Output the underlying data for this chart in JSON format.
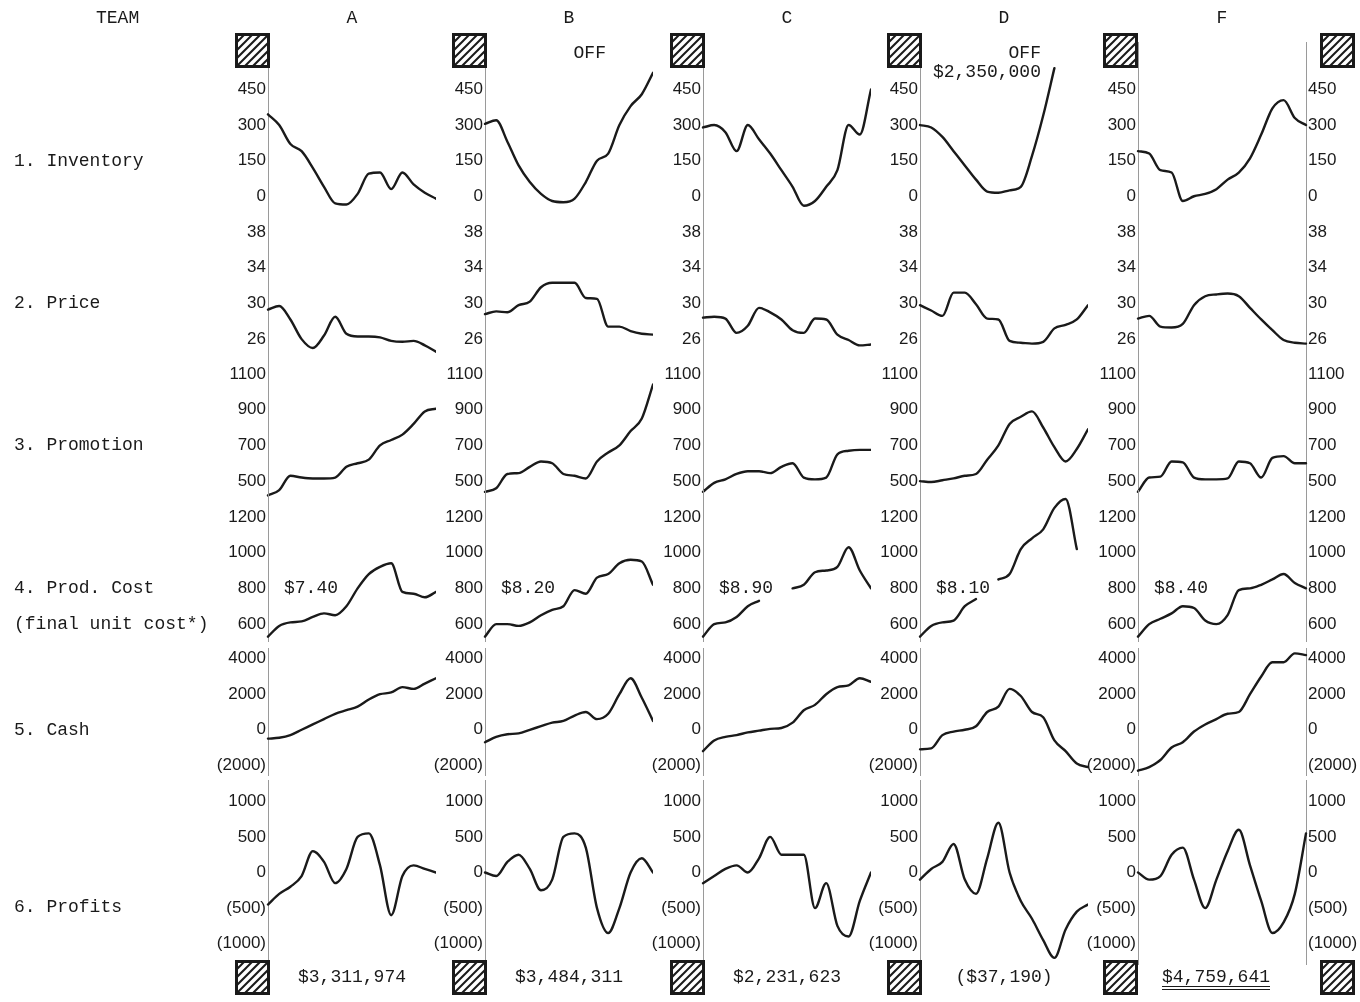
{
  "chart_data": [
    {
      "type": "other",
      "title": "TEAM"
    },
    {
      "type": "line",
      "title": "A",
      "ylabel": "1. Inventory",
      "categories": [
        null,
        null,
        null,
        null,
        null,
        null,
        null,
        null,
        null,
        null,
        null,
        null,
        null,
        null,
        null,
        null
      ],
      "values": [
        345,
        300,
        220,
        190,
        120,
        40,
        -30,
        -35,
        10,
        95,
        100,
        30,
        100,
        50,
        15,
        -10
      ],
      "color": "#1a1a1a",
      "ylim": [
        -100,
        650
      ],
      "yticks": [
        0,
        150,
        300,
        450
      ],
      "tick_labels": "y"
    },
    {
      "type": "line",
      "title": "B",
      "annotations": [
        "OFF"
      ],
      "categories": [
        null,
        null,
        null,
        null,
        null,
        null,
        null,
        null,
        null,
        null,
        null,
        null,
        null,
        null,
        null,
        null
      ],
      "values": [
        305,
        320,
        230,
        130,
        60,
        10,
        -20,
        -25,
        -10,
        60,
        150,
        180,
        300,
        380,
        430,
        520
      ],
      "color": "#1a1a1a",
      "ylim": [
        -100,
        650
      ],
      "yticks": [
        0,
        150,
        300,
        450
      ],
      "tick_labels": "y"
    },
    {
      "type": "line",
      "title": "C",
      "categories": [
        null,
        null,
        null,
        null,
        null,
        null,
        null,
        null,
        null,
        null,
        null,
        null,
        null,
        null,
        null,
        null
      ],
      "values": [
        290,
        300,
        270,
        190,
        300,
        240,
        180,
        110,
        40,
        -40,
        -20,
        40,
        110,
        300,
        260,
        450
      ],
      "color": "#1a1a1a",
      "ylim": [
        -100,
        650
      ],
      "yticks": [
        0,
        150,
        300,
        450
      ],
      "tick_labels": "y"
    },
    {
      "type": "line",
      "title": "D",
      "annotations": [
        "OFF",
        "$2,350,000"
      ],
      "categories": [
        null,
        null,
        null,
        null,
        null,
        null,
        null,
        null,
        null,
        null,
        null,
        null,
        null,
        null,
        null,
        null
      ],
      "values": [
        300,
        290,
        250,
        190,
        130,
        70,
        20,
        15,
        25,
        40,
        170,
        340,
        540,
        null,
        null,
        null
      ],
      "color": "#1a1a1a",
      "ylim": [
        -100,
        650
      ],
      "yticks": [
        0,
        150,
        300,
        450
      ],
      "tick_labels": "y"
    },
    {
      "type": "line",
      "title": "F",
      "categories": [
        null,
        null,
        null,
        null,
        null,
        null,
        null,
        null,
        null,
        null,
        null,
        null,
        null,
        null,
        null,
        null
      ],
      "values": [
        190,
        180,
        110,
        100,
        -20,
        0,
        10,
        30,
        70,
        100,
        160,
        260,
        370,
        405,
        330,
        300
      ],
      "color": "#1a1a1a",
      "ylim": [
        -100,
        650
      ],
      "yticks": [
        0,
        150,
        300,
        450
      ],
      "y2lim": [
        -100,
        650
      ],
      "y2ticks": [
        0,
        150,
        300,
        450
      ],
      "tick_labels": "y"
    },
    {
      "type": "line",
      "ylabel": "2. Price",
      "categories": [
        null,
        null,
        null,
        null,
        null,
        null,
        null,
        null,
        null,
        null,
        null,
        null,
        null,
        null,
        null,
        null
      ],
      "values": [
        29.3,
        29.7,
        28.2,
        26.0,
        25.0,
        26.4,
        28.5,
        26.6,
        26.3,
        26.3,
        26.2,
        25.8,
        25.7,
        25.8,
        25.3,
        24.6
      ],
      "color": "#1a1a1a",
      "ylim": [
        24,
        40
      ],
      "yticks": [
        26,
        30,
        34,
        38
      ],
      "tick_labels": "y"
    },
    {
      "type": "line",
      "categories": [
        null,
        null,
        null,
        null,
        null,
        null,
        null,
        null,
        null,
        null,
        null,
        null,
        null,
        null,
        null,
        null
      ],
      "values": [
        28.8,
        29.1,
        29.0,
        29.8,
        30.2,
        31.8,
        32.3,
        32.3,
        32.3,
        30.6,
        30.5,
        27.4,
        27.4,
        26.9,
        26.6,
        26.5
      ],
      "color": "#1a1a1a",
      "ylim": [
        24,
        40
      ],
      "yticks": [
        26,
        30,
        34,
        38
      ],
      "tick_labels": "y"
    },
    {
      "type": "line",
      "categories": [
        null,
        null,
        null,
        null,
        null,
        null,
        null,
        null,
        null,
        null,
        null,
        null,
        null,
        null,
        null,
        null
      ],
      "values": [
        28.4,
        28.5,
        28.3,
        26.7,
        27.5,
        29.5,
        29.0,
        28.2,
        27.0,
        26.7,
        28.3,
        28.2,
        26.5,
        25.9,
        25.3,
        25.4
      ],
      "color": "#1a1a1a",
      "ylim": [
        24,
        40
      ],
      "yticks": [
        26,
        30,
        34,
        38
      ],
      "tick_labels": "y"
    },
    {
      "type": "line",
      "categories": [
        null,
        null,
        null,
        null,
        null,
        null,
        null,
        null,
        null,
        null,
        null,
        null,
        null,
        null,
        null,
        null
      ],
      "values": [
        29.8,
        29.2,
        28.6,
        31.2,
        31.2,
        29.9,
        28.3,
        28.2,
        25.8,
        25.6,
        25.5,
        25.7,
        27.2,
        27.6,
        28.2,
        29.8
      ],
      "color": "#1a1a1a",
      "ylim": [
        24,
        40
      ],
      "yticks": [
        26,
        30,
        34,
        38
      ],
      "tick_labels": "y"
    },
    {
      "type": "line",
      "categories": [
        null,
        null,
        null,
        null,
        null,
        null,
        null,
        null,
        null,
        null,
        null,
        null,
        null,
        null,
        null,
        null
      ],
      "values": [
        28.3,
        28.6,
        27.4,
        27.3,
        27.7,
        29.8,
        30.8,
        31.0,
        31.1,
        30.8,
        29.5,
        28.2,
        27.0,
        25.9,
        25.6,
        25.5
      ],
      "color": "#1a1a1a",
      "ylim": [
        24,
        40
      ],
      "yticks": [
        26,
        30,
        34,
        38
      ],
      "y2lim": [
        24,
        40
      ],
      "y2ticks": [
        26,
        30,
        34,
        38
      ],
      "tick_labels": "y"
    },
    {
      "type": "line",
      "ylabel": "3. Promotion",
      "categories": [
        null,
        null,
        null,
        null,
        null,
        null,
        null,
        null,
        null,
        null,
        null,
        null,
        null,
        null,
        null,
        null
      ],
      "values": [
        420,
        450,
        530,
        520,
        515,
        515,
        520,
        580,
        600,
        620,
        700,
        730,
        760,
        820,
        890,
        905
      ],
      "color": "#1a1a1a",
      "ylim": [
        400,
        1200
      ],
      "yticks": [
        500,
        700,
        900,
        1100
      ],
      "tick_labels": "y"
    },
    {
      "type": "line",
      "categories": [
        null,
        null,
        null,
        null,
        null,
        null,
        null,
        null,
        null,
        null,
        null,
        null,
        null,
        null,
        null,
        null
      ],
      "values": [
        440,
        460,
        540,
        545,
        580,
        610,
        600,
        540,
        530,
        515,
        610,
        660,
        700,
        780,
        850,
        1040
      ],
      "color": "#1a1a1a",
      "ylim": [
        400,
        1200
      ],
      "yticks": [
        500,
        700,
        900,
        1100
      ],
      "tick_labels": "y"
    },
    {
      "type": "line",
      "categories": [
        null,
        null,
        null,
        null,
        null,
        null,
        null,
        null,
        null,
        null,
        null,
        null,
        null,
        null,
        null,
        null
      ],
      "values": [
        440,
        490,
        510,
        540,
        555,
        555,
        545,
        580,
        600,
        520,
        510,
        520,
        650,
        670,
        675,
        675
      ],
      "color": "#1a1a1a",
      "ylim": [
        400,
        1200
      ],
      "yticks": [
        500,
        700,
        900,
        1100
      ],
      "tick_labels": "y"
    },
    {
      "type": "line",
      "categories": [
        null,
        null,
        null,
        null,
        null,
        null,
        null,
        null,
        null,
        null,
        null,
        null,
        null,
        null,
        null,
        null
      ],
      "values": [
        500,
        495,
        505,
        515,
        530,
        540,
        620,
        700,
        820,
        860,
        890,
        800,
        690,
        610,
        680,
        790
      ],
      "color": "#1a1a1a",
      "ylim": [
        400,
        1200
      ],
      "yticks": [
        500,
        700,
        900,
        1100
      ],
      "tick_labels": "y"
    },
    {
      "type": "line",
      "categories": [
        null,
        null,
        null,
        null,
        null,
        null,
        null,
        null,
        null,
        null,
        null,
        null,
        null,
        null,
        null,
        null
      ],
      "values": [
        440,
        520,
        525,
        610,
        605,
        520,
        510,
        510,
        515,
        610,
        600,
        520,
        630,
        640,
        600,
        600
      ],
      "color": "#1a1a1a",
      "ylim": [
        400,
        1200
      ],
      "yticks": [
        500,
        700,
        900,
        1100
      ],
      "y2lim": [
        400,
        1200
      ],
      "y2ticks": [
        500,
        700,
        900,
        1100
      ],
      "tick_labels": "y"
    },
    {
      "type": "line",
      "ylabel": "4. Prod. Cost\n(final unit cost*)",
      "annotations": [
        "$7.40"
      ],
      "categories": [
        null,
        null,
        null,
        null,
        null,
        null,
        null,
        null,
        null,
        null,
        null,
        null,
        null,
        null,
        null,
        null
      ],
      "values": [
        530,
        590,
        610,
        615,
        640,
        660,
        650,
        700,
        800,
        880,
        920,
        940,
        780,
        770,
        750,
        780
      ],
      "color": "#1a1a1a",
      "ylim": [
        500,
        1350
      ],
      "yticks": [
        600,
        800,
        1000,
        1200
      ],
      "tick_labels": "y"
    },
    {
      "type": "line",
      "annotations": [
        "$8.20"
      ],
      "categories": [
        null,
        null,
        null,
        null,
        null,
        null,
        null,
        null,
        null,
        null,
        null,
        null,
        null,
        null,
        null,
        null
      ],
      "values": [
        530,
        600,
        600,
        590,
        610,
        650,
        680,
        700,
        790,
        770,
        860,
        880,
        940,
        960,
        950,
        820
      ],
      "color": "#1a1a1a",
      "ylim": [
        500,
        1350
      ],
      "yticks": [
        600,
        800,
        1000,
        1200
      ],
      "tick_labels": "y"
    },
    {
      "type": "line",
      "annotations": [
        "$8.90"
      ],
      "categories": [
        null,
        null,
        null,
        null,
        null,
        null,
        null,
        null,
        null,
        null,
        null,
        null,
        null,
        null,
        null,
        null
      ],
      "series": [
        {
          "color": "#1a1a1a",
          "values": [
            530,
            600,
            610,
            640,
            700,
            730,
            null,
            null,
            null,
            null,
            null,
            null,
            null,
            null,
            null,
            null
          ]
        },
        {
          "color": "#1a1a1a",
          "values": [
            null,
            null,
            null,
            null,
            null,
            null,
            null,
            null,
            800,
            820,
            890,
            900,
            920,
            1030,
            900,
            800
          ]
        }
      ],
      "ylim": [
        500,
        1350
      ],
      "yticks": [
        600,
        800,
        1000,
        1200
      ],
      "tick_labels": "y"
    },
    {
      "type": "line",
      "annotations": [
        "$8.10"
      ],
      "categories": [
        null,
        null,
        null,
        null,
        null,
        null,
        null,
        null,
        null,
        null,
        null,
        null,
        null,
        null,
        null,
        null
      ],
      "series": [
        {
          "color": "#1a1a1a",
          "values": [
            530,
            590,
            610,
            620,
            700,
            740,
            null,
            null,
            null,
            null,
            null,
            null,
            null,
            null,
            null,
            null
          ]
        },
        {
          "color": "#1a1a1a",
          "values": [
            null,
            null,
            null,
            null,
            null,
            null,
            null,
            850,
            880,
            1020,
            1080,
            1130,
            1250,
            1300,
            1020,
            null
          ]
        }
      ],
      "ylim": [
        500,
        1350
      ],
      "yticks": [
        600,
        800,
        1000,
        1200
      ],
      "tick_labels": "y"
    },
    {
      "type": "line",
      "annotations": [
        "$8.40"
      ],
      "categories": [
        null,
        null,
        null,
        null,
        null,
        null,
        null,
        null,
        null,
        null,
        null,
        null,
        null,
        null,
        null,
        null
      ],
      "values": [
        530,
        600,
        630,
        660,
        700,
        690,
        620,
        600,
        650,
        790,
        800,
        820,
        850,
        880,
        830,
        800
      ],
      "color": "#1a1a1a",
      "ylim": [
        500,
        1350
      ],
      "yticks": [
        600,
        800,
        1000,
        1200
      ],
      "y2lim": [
        500,
        1350
      ],
      "y2ticks": [
        600,
        800,
        1000,
        1200
      ],
      "tick_labels": "y"
    },
    {
      "type": "line",
      "ylabel": "5. Cash",
      "categories": [
        null,
        null,
        null,
        null,
        null,
        null,
        null,
        null,
        null,
        null,
        null,
        null,
        null,
        null,
        null,
        null
      ],
      "values": [
        -500,
        -450,
        -300,
        0,
        300,
        600,
        900,
        1100,
        1300,
        1700,
        2000,
        2100,
        2400,
        2300,
        2600,
        2900
      ],
      "color": "#1a1a1a",
      "ylim": [
        -2600,
        4600
      ],
      "yticks": [
        {
          "value": -2000,
          "label": "(2000)"
        },
        0,
        2000,
        4000
      ],
      "tick_labels": "y"
    },
    {
      "type": "line",
      "categories": [
        null,
        null,
        null,
        null,
        null,
        null,
        null,
        null,
        null,
        null,
        null,
        null,
        null,
        null,
        null,
        null
      ],
      "values": [
        -700,
        -400,
        -250,
        -200,
        0,
        200,
        400,
        500,
        800,
        1000,
        600,
        900,
        2000,
        2900,
        1800,
        500
      ],
      "color": "#1a1a1a",
      "ylim": [
        -2600,
        4600
      ],
      "yticks": [
        {
          "value": -2000,
          "label": "(2000)"
        },
        0,
        2000,
        4000
      ],
      "tick_labels": "y"
    },
    {
      "type": "line",
      "categories": [
        null,
        null,
        null,
        null,
        null,
        null,
        null,
        null,
        null,
        null,
        null,
        null,
        null,
        null,
        null,
        null
      ],
      "values": [
        -1200,
        -600,
        -400,
        -300,
        -150,
        -50,
        50,
        100,
        400,
        1100,
        1400,
        2000,
        2400,
        2500,
        2900,
        2700
      ],
      "color": "#1a1a1a",
      "ylim": [
        -2600,
        4600
      ],
      "yticks": [
        {
          "value": -2000,
          "label": "(2000)"
        },
        0,
        2000,
        4000
      ],
      "tick_labels": "y"
    },
    {
      "type": "line",
      "categories": [
        null,
        null,
        null,
        null,
        null,
        null,
        null,
        null,
        null,
        null,
        null,
        null,
        null,
        null,
        null,
        null
      ],
      "values": [
        -1100,
        -1050,
        -300,
        -100,
        0,
        200,
        1000,
        1300,
        2300,
        1900,
        1000,
        700,
        -600,
        -1200,
        -1900,
        -2100
      ],
      "color": "#1a1a1a",
      "ylim": [
        -2600,
        4600
      ],
      "yticks": [
        {
          "value": -2000,
          "label": "(2000)"
        },
        0,
        2000,
        4000
      ],
      "tick_labels": "y"
    },
    {
      "type": "line",
      "categories": [
        null,
        null,
        null,
        null,
        null,
        null,
        null,
        null,
        null,
        null,
        null,
        null,
        null,
        null,
        null,
        null
      ],
      "values": [
        -2300,
        -2100,
        -1700,
        -1000,
        -700,
        -100,
        300,
        600,
        900,
        1000,
        2000,
        3000,
        3800,
        3800,
        4300,
        4200
      ],
      "color": "#1a1a1a",
      "ylim": [
        -2600,
        4600
      ],
      "yticks": [
        {
          "value": -2000,
          "label": "(2000)"
        },
        0,
        2000,
        4000
      ],
      "y2lim": [
        -2600,
        4600
      ],
      "y2ticks": [
        {
          "value": -2000,
          "label": "(2000)"
        },
        0,
        2000,
        4000
      ],
      "tick_labels": "y"
    },
    {
      "type": "line",
      "ylabel": "6. Profits",
      "annotations": [
        "$3,311,974"
      ],
      "categories": [
        null,
        null,
        null,
        null,
        null,
        null,
        null,
        null,
        null,
        null,
        null,
        null,
        null,
        null,
        null,
        null
      ],
      "values": [
        -450,
        -300,
        -200,
        -50,
        300,
        150,
        -150,
        50,
        500,
        550,
        100,
        -600,
        -50,
        100,
        50,
        0
      ],
      "color": "#1a1a1a",
      "ylim": [
        -1300,
        1300
      ],
      "yticks": [
        {
          "value": -1000,
          "label": "(1000)"
        },
        {
          "value": -500,
          "label": "(500)"
        },
        0,
        500,
        1000
      ],
      "tick_labels": "y"
    },
    {
      "type": "line",
      "annotations": [
        "$3,484,311"
      ],
      "categories": [
        null,
        null,
        null,
        null,
        null,
        null,
        null,
        null,
        null,
        null,
        null,
        null,
        null,
        null,
        null,
        null
      ],
      "values": [
        0,
        -50,
        150,
        250,
        50,
        -250,
        -100,
        500,
        550,
        350,
        -500,
        -850,
        -500,
        0,
        200,
        0
      ],
      "color": "#1a1a1a",
      "ylim": [
        -1300,
        1300
      ],
      "yticks": [
        {
          "value": -1000,
          "label": "(1000)"
        },
        {
          "value": -500,
          "label": "(500)"
        },
        0,
        500,
        1000
      ],
      "tick_labels": "y"
    },
    {
      "type": "line",
      "annotations": [
        "$2,231,623"
      ],
      "categories": [
        null,
        null,
        null,
        null,
        null,
        null,
        null,
        null,
        null,
        null,
        null,
        null,
        null,
        null,
        null,
        null
      ],
      "values": [
        -150,
        -50,
        50,
        100,
        0,
        200,
        500,
        250,
        250,
        250,
        -500,
        -150,
        -750,
        -900,
        -400,
        0
      ],
      "color": "#1a1a1a",
      "ylim": [
        -1300,
        1300
      ],
      "yticks": [
        {
          "value": -1000,
          "label": "(1000)"
        },
        {
          "value": -500,
          "label": "(500)"
        },
        0,
        500,
        1000
      ],
      "tick_labels": "y"
    },
    {
      "type": "line",
      "annotations": [
        "($37,190)"
      ],
      "categories": [
        null,
        null,
        null,
        null,
        null,
        null,
        null,
        null,
        null,
        null,
        null,
        null,
        null,
        null,
        null,
        null
      ],
      "values": [
        -100,
        50,
        150,
        400,
        -100,
        -300,
        200,
        700,
        0,
        -400,
        -650,
        -950,
        -1200,
        -800,
        -550,
        -450
      ],
      "color": "#1a1a1a",
      "ylim": [
        -1300,
        1300
      ],
      "yticks": [
        {
          "value": -1000,
          "label": "(1000)"
        },
        {
          "value": -500,
          "label": "(500)"
        },
        0,
        500,
        1000
      ],
      "tick_labels": "y"
    },
    {
      "type": "line",
      "annotations": [
        "$4,759,641"
      ],
      "categories": [
        null,
        null,
        null,
        null,
        null,
        null,
        null,
        null,
        null,
        null,
        null,
        null,
        null,
        null,
        null,
        null
      ],
      "values": [
        0,
        -100,
        -50,
        250,
        350,
        -100,
        -500,
        -100,
        300,
        600,
        100,
        -400,
        -850,
        -700,
        -300,
        550
      ],
      "color": "#1a1a1a",
      "ylim": [
        -1300,
        1300
      ],
      "yticks": [
        {
          "value": -1000,
          "label": "(1000)"
        },
        {
          "value": -500,
          "label": "(500)"
        },
        0,
        500,
        1000
      ],
      "y2lim": [
        -1300,
        1300
      ],
      "y2ticks": [
        {
          "value": -1000,
          "label": "(1000)"
        },
        {
          "value": -500,
          "label": "(500)"
        },
        0,
        500,
        1000
      ],
      "tick_labels": "y"
    }
  ]
}
